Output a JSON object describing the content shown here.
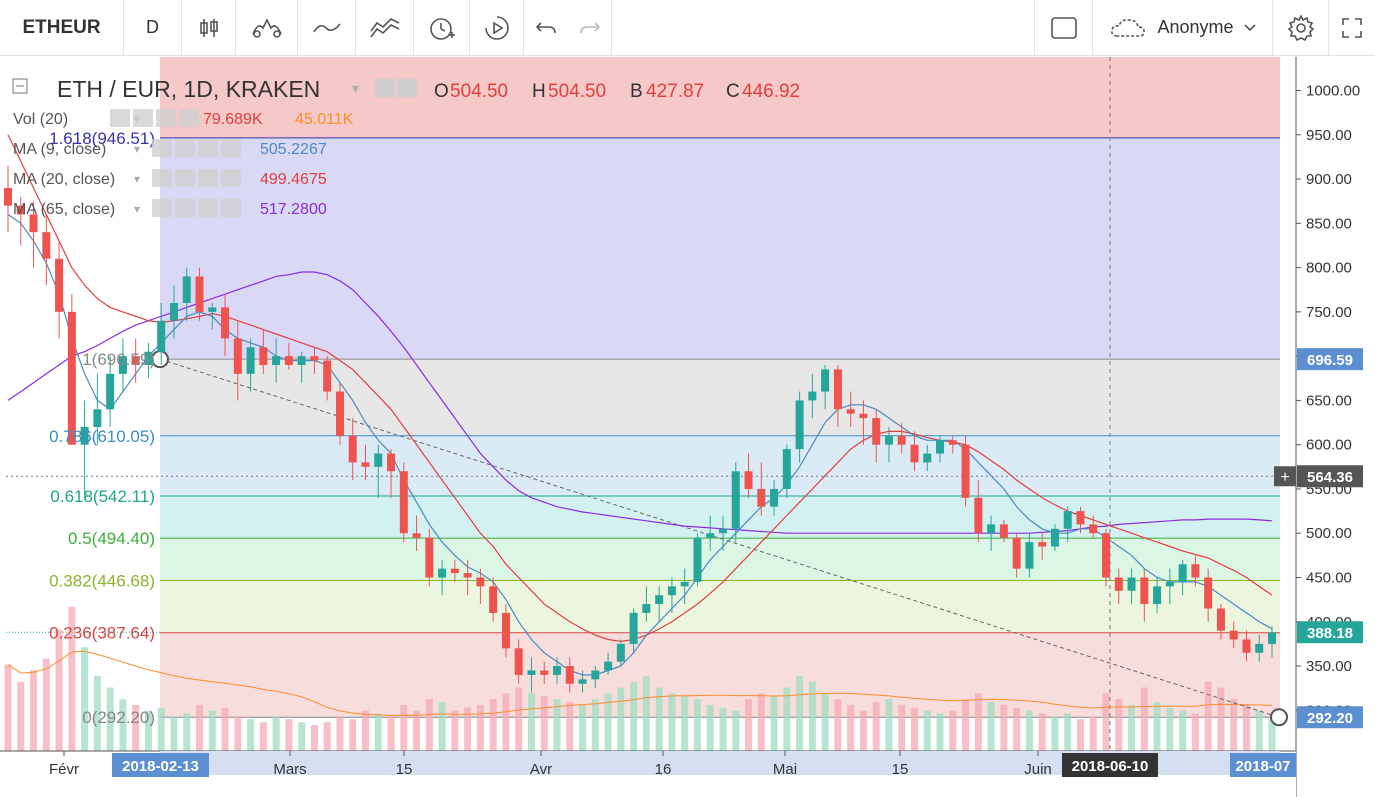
{
  "toolbar": {
    "symbol": "ETHEUR",
    "interval": "D",
    "user_label": "Anonyme",
    "icons": [
      "candles-icon",
      "indicators-icon",
      "compare-icon",
      "templates-icon",
      "alert-icon",
      "replay-icon",
      "undo-icon",
      "redo-icon",
      "layout-icon",
      "cloud-icon",
      "settings-icon",
      "fullscreen-icon"
    ]
  },
  "legend": {
    "title": "ETH / EUR, 1D, KRAKEN",
    "o_label": "O",
    "o_value": "504.50",
    "h_label": "H",
    "h_value": "504.50",
    "b_label": "B",
    "b_value": "427.87",
    "c_label": "C",
    "c_value": "446.92",
    "indicators": [
      {
        "name": "Vol (20)",
        "v1": "79.689K",
        "v2": "45.011K",
        "c1": "#e33e3e",
        "c2": "#ff8c2e"
      },
      {
        "name": "MA (9, close)",
        "v1": "505.2267",
        "c1": "#4a8ac4"
      },
      {
        "name": "MA (20, close)",
        "v1": "499.4675",
        "c1": "#e33e3e"
      },
      {
        "name": "MA (65, close)",
        "v1": "517.2800",
        "c1": "#8a2be2"
      }
    ]
  },
  "fib_labels": [
    {
      "text": "1.618(946.51)",
      "price": 946.51,
      "color": "#3333aa"
    },
    {
      "text": "1(696.59)",
      "price": 696.59,
      "color": "#888888"
    },
    {
      "text": "0.786(610.05)",
      "price": 610.05,
      "color": "#3a8ec7"
    },
    {
      "text": "0.618(542.11)",
      "price": 542.11,
      "color": "#1ea58a"
    },
    {
      "text": "0.5(494.40)",
      "price": 494.4,
      "color": "#3dae3d"
    },
    {
      "text": "0.382(446.68)",
      "price": 446.68,
      "color": "#8ab52c"
    },
    {
      "text": "0.236(387.64)",
      "price": 387.64,
      "color": "#d94545"
    },
    {
      "text": "0(292.20)",
      "price": 292.2,
      "color": "#888888"
    }
  ],
  "price_badges": [
    {
      "text": "696.59",
      "price": 696.59,
      "bg": "#5b8fd1",
      "fg": "#ffffff"
    },
    {
      "text": "564.36",
      "price": 564.36,
      "bg": "#555555",
      "fg": "#ffffff"
    },
    {
      "text": "388.18",
      "price": 388.18,
      "bg": "#26a69a",
      "fg": "#ffffff"
    },
    {
      "text": "292.20",
      "price": 292.2,
      "bg": "#5b8fd1",
      "fg": "#ffffff"
    }
  ],
  "date_badges": [
    {
      "text": "2018-02-13",
      "bg": "#5b8fd1"
    },
    {
      "text": "2018-06-10",
      "bg": "#333333"
    },
    {
      "text": "2018-07",
      "bg": "#5b8fd1"
    }
  ],
  "colors": {
    "up": "#26a69a",
    "down": "#ef5350",
    "ma9": "#4a8ac4",
    "ma20": "#e33e3e",
    "ma65": "#8a2be2"
  },
  "chart_data": {
    "type": "candlestick",
    "symbol": "ETH / EUR",
    "interval": "1D",
    "exchange": "KRAKEN",
    "y_ticks": [
      1000,
      950,
      900,
      850,
      800,
      750,
      700,
      650,
      600,
      550,
      500,
      450,
      400,
      350,
      300
    ],
    "y_tick_labels": [
      "1000.00",
      "950.00",
      "900.00",
      "850.00",
      "800.00",
      "750.00",
      "700.00",
      "650.00",
      "600.00",
      "550.00",
      "500.00",
      "450.00",
      "400.00",
      "350.00",
      "300.00"
    ],
    "ylim": [
      278,
      1027
    ],
    "x_tick_labels": [
      "Févr",
      "Mars",
      "15",
      "Avr",
      "16",
      "Mai",
      "15",
      "Juin"
    ],
    "fibonacci": {
      "levels": [
        1.618,
        1,
        0.786,
        0.618,
        0.5,
        0.382,
        0.236,
        0
      ],
      "prices": [
        946.51,
        696.59,
        610.05,
        542.11,
        494.4,
        446.68,
        387.64,
        292.2
      ]
    },
    "candles": [
      [
        890,
        915,
        840,
        870
      ],
      [
        870,
        880,
        825,
        860
      ],
      [
        860,
        875,
        800,
        840
      ],
      [
        840,
        860,
        780,
        810
      ],
      [
        810,
        830,
        720,
        750
      ],
      [
        750,
        770,
        600,
        600
      ],
      [
        600,
        650,
        540,
        620
      ],
      [
        620,
        680,
        600,
        640
      ],
      [
        640,
        700,
        620,
        680
      ],
      [
        680,
        720,
        660,
        700
      ],
      [
        700,
        720,
        670,
        690
      ],
      [
        690,
        715,
        675,
        705
      ],
      [
        705,
        760,
        690,
        740
      ],
      [
        740,
        780,
        720,
        760
      ],
      [
        760,
        800,
        740,
        790
      ],
      [
        790,
        800,
        740,
        750
      ],
      [
        750,
        760,
        730,
        755
      ],
      [
        755,
        770,
        700,
        720
      ],
      [
        720,
        740,
        650,
        680
      ],
      [
        680,
        720,
        660,
        710
      ],
      [
        710,
        730,
        680,
        690
      ],
      [
        690,
        720,
        670,
        700
      ],
      [
        700,
        715,
        685,
        690
      ],
      [
        690,
        705,
        670,
        700
      ],
      [
        700,
        710,
        680,
        695
      ],
      [
        695,
        700,
        650,
        660
      ],
      [
        660,
        670,
        600,
        610
      ],
      [
        610,
        630,
        560,
        580
      ],
      [
        580,
        600,
        560,
        575
      ],
      [
        575,
        600,
        540,
        590
      ],
      [
        590,
        595,
        540,
        570
      ],
      [
        570,
        580,
        490,
        500
      ],
      [
        500,
        520,
        480,
        495
      ],
      [
        495,
        505,
        440,
        450
      ],
      [
        450,
        470,
        430,
        460
      ],
      [
        460,
        470,
        445,
        455
      ],
      [
        455,
        470,
        430,
        450
      ],
      [
        450,
        460,
        420,
        440
      ],
      [
        440,
        450,
        400,
        410
      ],
      [
        410,
        420,
        360,
        370
      ],
      [
        370,
        380,
        330,
        340
      ],
      [
        340,
        360,
        320,
        345
      ],
      [
        345,
        355,
        330,
        340
      ],
      [
        340,
        360,
        330,
        350
      ],
      [
        350,
        360,
        320,
        330
      ],
      [
        330,
        345,
        320,
        335
      ],
      [
        335,
        350,
        325,
        345
      ],
      [
        345,
        365,
        340,
        355
      ],
      [
        355,
        380,
        350,
        375
      ],
      [
        375,
        415,
        365,
        410
      ],
      [
        410,
        440,
        400,
        420
      ],
      [
        420,
        440,
        400,
        430
      ],
      [
        430,
        450,
        410,
        440
      ],
      [
        440,
        460,
        420,
        445
      ],
      [
        445,
        500,
        440,
        495
      ],
      [
        495,
        520,
        480,
        500
      ],
      [
        500,
        520,
        480,
        505
      ],
      [
        505,
        580,
        490,
        570
      ],
      [
        570,
        590,
        540,
        550
      ],
      [
        550,
        580,
        520,
        530
      ],
      [
        530,
        560,
        520,
        550
      ],
      [
        550,
        600,
        540,
        595
      ],
      [
        595,
        660,
        580,
        650
      ],
      [
        650,
        680,
        630,
        660
      ],
      [
        660,
        690,
        640,
        685
      ],
      [
        685,
        690,
        620,
        640
      ],
      [
        640,
        660,
        620,
        635
      ],
      [
        635,
        650,
        600,
        630
      ],
      [
        630,
        640,
        580,
        600
      ],
      [
        600,
        620,
        580,
        610
      ],
      [
        610,
        625,
        590,
        600
      ],
      [
        600,
        615,
        570,
        580
      ],
      [
        580,
        600,
        570,
        590
      ],
      [
        590,
        610,
        580,
        605
      ],
      [
        605,
        610,
        590,
        600
      ],
      [
        600,
        610,
        530,
        540
      ],
      [
        540,
        560,
        490,
        500
      ],
      [
        500,
        520,
        480,
        510
      ],
      [
        510,
        515,
        490,
        495
      ],
      [
        495,
        500,
        450,
        460
      ],
      [
        460,
        500,
        450,
        490
      ],
      [
        490,
        500,
        470,
        485
      ],
      [
        485,
        510,
        480,
        505
      ],
      [
        505,
        530,
        490,
        525
      ],
      [
        525,
        530,
        500,
        510
      ],
      [
        510,
        520,
        495,
        500
      ],
      [
        500,
        505,
        440,
        450
      ],
      [
        450,
        460,
        420,
        435
      ],
      [
        435,
        460,
        420,
        450
      ],
      [
        450,
        460,
        400,
        420
      ],
      [
        420,
        450,
        410,
        440
      ],
      [
        440,
        460,
        420,
        445
      ],
      [
        445,
        470,
        430,
        465
      ],
      [
        465,
        475,
        440,
        450
      ],
      [
        450,
        460,
        400,
        415
      ],
      [
        415,
        420,
        380,
        390
      ],
      [
        390,
        400,
        370,
        380
      ],
      [
        380,
        390,
        355,
        365
      ],
      [
        365,
        385,
        355,
        375
      ],
      [
        375,
        395,
        360,
        388
      ]
    ],
    "ma9_close": [
      860,
      850,
      830,
      805,
      770,
      720,
      680,
      650,
      640,
      660,
      680,
      700,
      715,
      730,
      745,
      750,
      745,
      730,
      720,
      715,
      710,
      700,
      695,
      695,
      695,
      690,
      670,
      650,
      625,
      605,
      590,
      560,
      535,
      510,
      490,
      475,
      462,
      455,
      445,
      425,
      400,
      380,
      365,
      355,
      345,
      340,
      340,
      345,
      350,
      365,
      385,
      400,
      415,
      430,
      450,
      470,
      485,
      500,
      515,
      530,
      540,
      555,
      575,
      600,
      625,
      640,
      645,
      645,
      640,
      630,
      620,
      610,
      605,
      605,
      605,
      595,
      580,
      565,
      550,
      530,
      515,
      505,
      500,
      500,
      505,
      505,
      495,
      485,
      475,
      460,
      450,
      445,
      445,
      445,
      440,
      430,
      420,
      410,
      400,
      392
    ],
    "ma20_close": [
      950,
      920,
      890,
      860,
      830,
      800,
      780,
      765,
      755,
      750,
      745,
      740,
      738,
      740,
      742,
      745,
      748,
      745,
      740,
      735,
      730,
      725,
      720,
      715,
      710,
      705,
      695,
      685,
      670,
      655,
      640,
      620,
      600,
      580,
      560,
      540,
      520,
      500,
      485,
      465,
      450,
      435,
      420,
      410,
      400,
      392,
      385,
      380,
      378,
      380,
      385,
      392,
      400,
      410,
      420,
      432,
      445,
      460,
      475,
      490,
      505,
      520,
      535,
      550,
      565,
      580,
      595,
      605,
      612,
      615,
      615,
      612,
      608,
      605,
      603,
      600,
      592,
      582,
      572,
      560,
      550,
      540,
      532,
      525,
      520,
      515,
      510,
      505,
      500,
      495,
      490,
      485,
      480,
      476,
      472,
      465,
      458,
      450,
      440,
      430
    ],
    "ma65_close": [
      650,
      660,
      670,
      680,
      690,
      700,
      705,
      712,
      720,
      728,
      735,
      740,
      745,
      750,
      755,
      760,
      765,
      770,
      775,
      780,
      785,
      790,
      792,
      795,
      795,
      792,
      785,
      775,
      760,
      745,
      728,
      710,
      690,
      670,
      650,
      630,
      610,
      590,
      575,
      560,
      548,
      540,
      535,
      530,
      527,
      524,
      522,
      520,
      518,
      516,
      514,
      512,
      510,
      508,
      507,
      506,
      505,
      504,
      503,
      502,
      501,
      500,
      500,
      500,
      500,
      500,
      500,
      500,
      500,
      500,
      500,
      500,
      500,
      500,
      500,
      500,
      500,
      500,
      500,
      500,
      500,
      501,
      502,
      503,
      505,
      507,
      508,
      510,
      511,
      512,
      513,
      514,
      515,
      515,
      516,
      516,
      516,
      516,
      515,
      514
    ],
    "volume": [
      150,
      120,
      140,
      160,
      210,
      250,
      180,
      130,
      110,
      90,
      80,
      70,
      75,
      60,
      65,
      80,
      70,
      75,
      60,
      55,
      50,
      60,
      55,
      50,
      45,
      50,
      60,
      55,
      70,
      65,
      60,
      80,
      70,
      90,
      85,
      70,
      75,
      80,
      90,
      100,
      110,
      100,
      95,
      90,
      85,
      80,
      90,
      100,
      110,
      120,
      130,
      110,
      100,
      95,
      90,
      80,
      75,
      70,
      90,
      100,
      95,
      110,
      130,
      120,
      100,
      90,
      80,
      70,
      85,
      90,
      80,
      75,
      70,
      65,
      70,
      90,
      100,
      85,
      80,
      75,
      70,
      65,
      60,
      65,
      55,
      60,
      100,
      90,
      80,
      110,
      85,
      75,
      70,
      65,
      120,
      110,
      90,
      80,
      70,
      60
    ]
  }
}
